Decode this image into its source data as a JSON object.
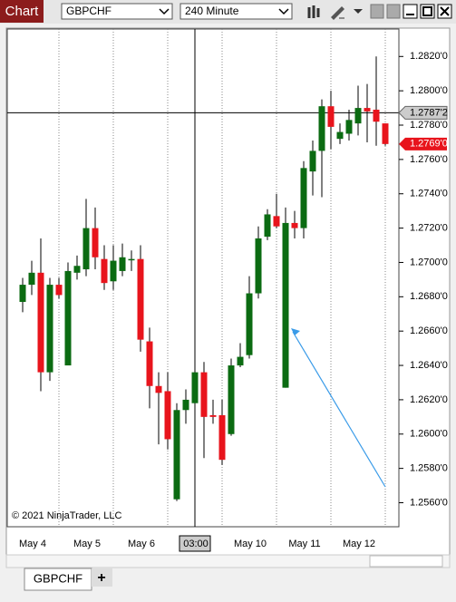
{
  "toolbar": {
    "title": "Chart",
    "instrument": "GBPCHF",
    "interval": "240 Minute"
  },
  "tabs": [
    "GBPCHF",
    "+"
  ],
  "chart_data": {
    "type": "candlestick",
    "copyright": "© 2021 NinjaTrader, LLC",
    "up_color": "#0b6b12",
    "down_color": "#e8141c",
    "wick_color": "#000000",
    "categories": [
      null,
      "May 4",
      null,
      null,
      null,
      null,
      null,
      "May 5",
      null,
      null,
      null,
      null,
      null,
      "May 6",
      null,
      null,
      null,
      null,
      null,
      "03:00",
      null,
      null,
      null,
      null,
      null,
      "May 10",
      null,
      null,
      null,
      null,
      null,
      "May 11",
      null,
      null,
      null,
      null,
      null,
      "May 12",
      null,
      null,
      null
    ],
    "ohlc": [
      [
        1.2677,
        1.2691,
        1.2671,
        1.2687
      ],
      [
        1.2687,
        1.2701,
        1.2681,
        1.2694
      ],
      [
        1.2694,
        1.2714,
        1.2625,
        1.2636
      ],
      [
        1.2636,
        1.2691,
        1.2631,
        1.2687
      ],
      [
        1.2687,
        1.2691,
        1.2679,
        1.2681
      ],
      [
        1.264,
        1.27,
        1.264,
        1.2695
      ],
      [
        1.2694,
        1.2704,
        1.269,
        1.2698
      ],
      [
        1.2696,
        1.2737,
        1.2692,
        1.272
      ],
      [
        1.272,
        1.2732,
        1.2696,
        1.2703
      ],
      [
        1.2702,
        1.271,
        1.2684,
        1.2688
      ],
      [
        1.2689,
        1.271,
        1.2684,
        1.2701
      ],
      [
        1.2695,
        1.2711,
        1.2692,
        1.2703
      ],
      [
        1.2702,
        1.2707,
        1.2695,
        1.2702
      ],
      [
        1.2702,
        1.271,
        1.2648,
        1.2655
      ],
      [
        1.2654,
        1.2662,
        1.2615,
        1.2628
      ],
      [
        1.2628,
        1.2636,
        1.2594,
        1.2624
      ],
      [
        1.2625,
        1.2636,
        1.2591,
        1.2597
      ],
      [
        1.2562,
        1.2618,
        1.2561,
        1.2614
      ],
      [
        1.2614,
        1.2626,
        1.2606,
        1.262
      ],
      [
        1.2618,
        1.2651,
        1.261,
        1.2636
      ],
      [
        1.2636,
        1.2642,
        1.2586,
        1.261
      ],
      [
        1.2611,
        1.262,
        1.2606,
        1.261
      ],
      [
        1.2611,
        1.262,
        1.2582,
        1.2585
      ],
      [
        1.26,
        1.2644,
        1.2599,
        1.264
      ],
      [
        1.264,
        1.2653,
        1.2639,
        1.2645
      ],
      [
        1.2646,
        1.2692,
        1.2644,
        1.2682
      ],
      [
        1.2682,
        1.2721,
        1.2679,
        1.2714
      ],
      [
        1.2715,
        1.2731,
        1.2713,
        1.2728
      ],
      [
        1.2727,
        1.274,
        1.272,
        1.2721
      ],
      [
        1.2627,
        1.2732,
        1.2627,
        1.2723
      ],
      [
        1.2723,
        1.273,
        1.2714,
        1.272
      ],
      [
        1.272,
        1.2759,
        1.2714,
        1.2755
      ],
      [
        1.2753,
        1.2771,
        1.2739,
        1.2765
      ],
      [
        1.2765,
        1.2795,
        1.2738,
        1.2791
      ],
      [
        1.2791,
        1.28,
        1.2766,
        1.2779
      ],
      [
        1.2772,
        1.2781,
        1.2769,
        1.2776
      ],
      [
        1.2775,
        1.2789,
        1.2771,
        1.2783
      ],
      [
        1.2781,
        1.2803,
        1.2774,
        1.279
      ],
      [
        1.279,
        1.2804,
        1.277,
        1.2788
      ],
      [
        1.2789,
        1.282,
        1.2768,
        1.2782
      ],
      [
        1.2781,
        1.2781,
        1.2768,
        1.2769
      ]
    ],
    "ylim": [
      1.2546,
      1.2836
    ],
    "yticks": [
      {
        "value": 1.282,
        "label": "1.2820'0"
      },
      {
        "value": 1.28,
        "label": "1.2800'0"
      },
      {
        "value": 1.278,
        "label": "1.2780'0"
      },
      {
        "value": 1.276,
        "label": "1.2760'0"
      },
      {
        "value": 1.274,
        "label": "1.2740'0"
      },
      {
        "value": 1.272,
        "label": "1.2720'0"
      },
      {
        "value": 1.27,
        "label": "1.2700'0"
      },
      {
        "value": 1.268,
        "label": "1.2680'0"
      },
      {
        "value": 1.266,
        "label": "1.2660'0"
      },
      {
        "value": 1.264,
        "label": "1.2640'0"
      },
      {
        "value": 1.262,
        "label": "1.2620'0"
      },
      {
        "value": 1.26,
        "label": "1.2600'0"
      },
      {
        "value": 1.258,
        "label": "1.2580'0"
      },
      {
        "value": 1.256,
        "label": "1.2560'0"
      }
    ],
    "crosshair": {
      "category_index": 19,
      "value": 1.27872,
      "label": "1.2787'2"
    },
    "last_price": {
      "value": 1.2769,
      "label": "1.2769'0"
    }
  }
}
